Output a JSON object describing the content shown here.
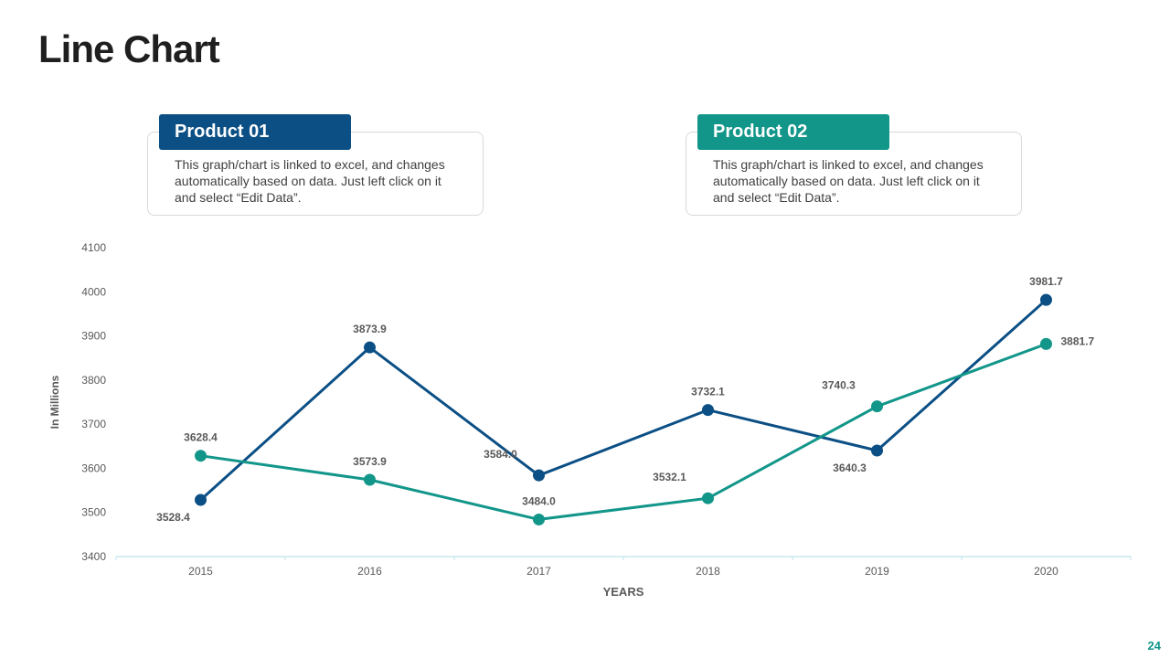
{
  "title": "Line Chart",
  "page_number": "24",
  "cards": [
    {
      "label": "Product 01",
      "color": "#0b4f85",
      "description": "This graph/chart is linked to excel, and changes automatically based on data. Just left click on it and select “Edit Data”."
    },
    {
      "label": "Product 02",
      "color": "#12968a",
      "description": "This graph/chart is linked to excel, and changes automatically based on data. Just left click on it and select “Edit Data”."
    }
  ],
  "colors": {
    "accent": "#12968a",
    "axis": "#bfe3ee",
    "text": "#595959"
  },
  "chart_data": {
    "type": "line",
    "x": [
      "2015",
      "2016",
      "2017",
      "2018",
      "2019",
      "2020"
    ],
    "xlabel": "YEARS",
    "ylabel": "In Millions",
    "ylim": [
      3400,
      4100
    ],
    "yticks": [
      "3400",
      "3500",
      "3600",
      "3700",
      "3800",
      "3900",
      "4000",
      "4100"
    ],
    "grid": false,
    "series": [
      {
        "name": "Product 01",
        "color": "#0b4f85",
        "values": [
          3528.4,
          3873.9,
          3584.0,
          3732.1,
          3640.3,
          3981.7
        ],
        "labels": [
          "3528.4",
          "3873.9",
          "3584.0",
          "3732.1",
          "3640.3",
          "3981.7"
        ]
      },
      {
        "name": "Product 02",
        "color": "#12968a",
        "values": [
          3628.4,
          3573.9,
          3484.0,
          3532.1,
          3740.3,
          3881.7
        ],
        "labels": [
          "3628.4",
          "3573.9",
          "3484.0",
          "3532.1",
          "3740.3",
          "3881.7"
        ]
      }
    ]
  }
}
